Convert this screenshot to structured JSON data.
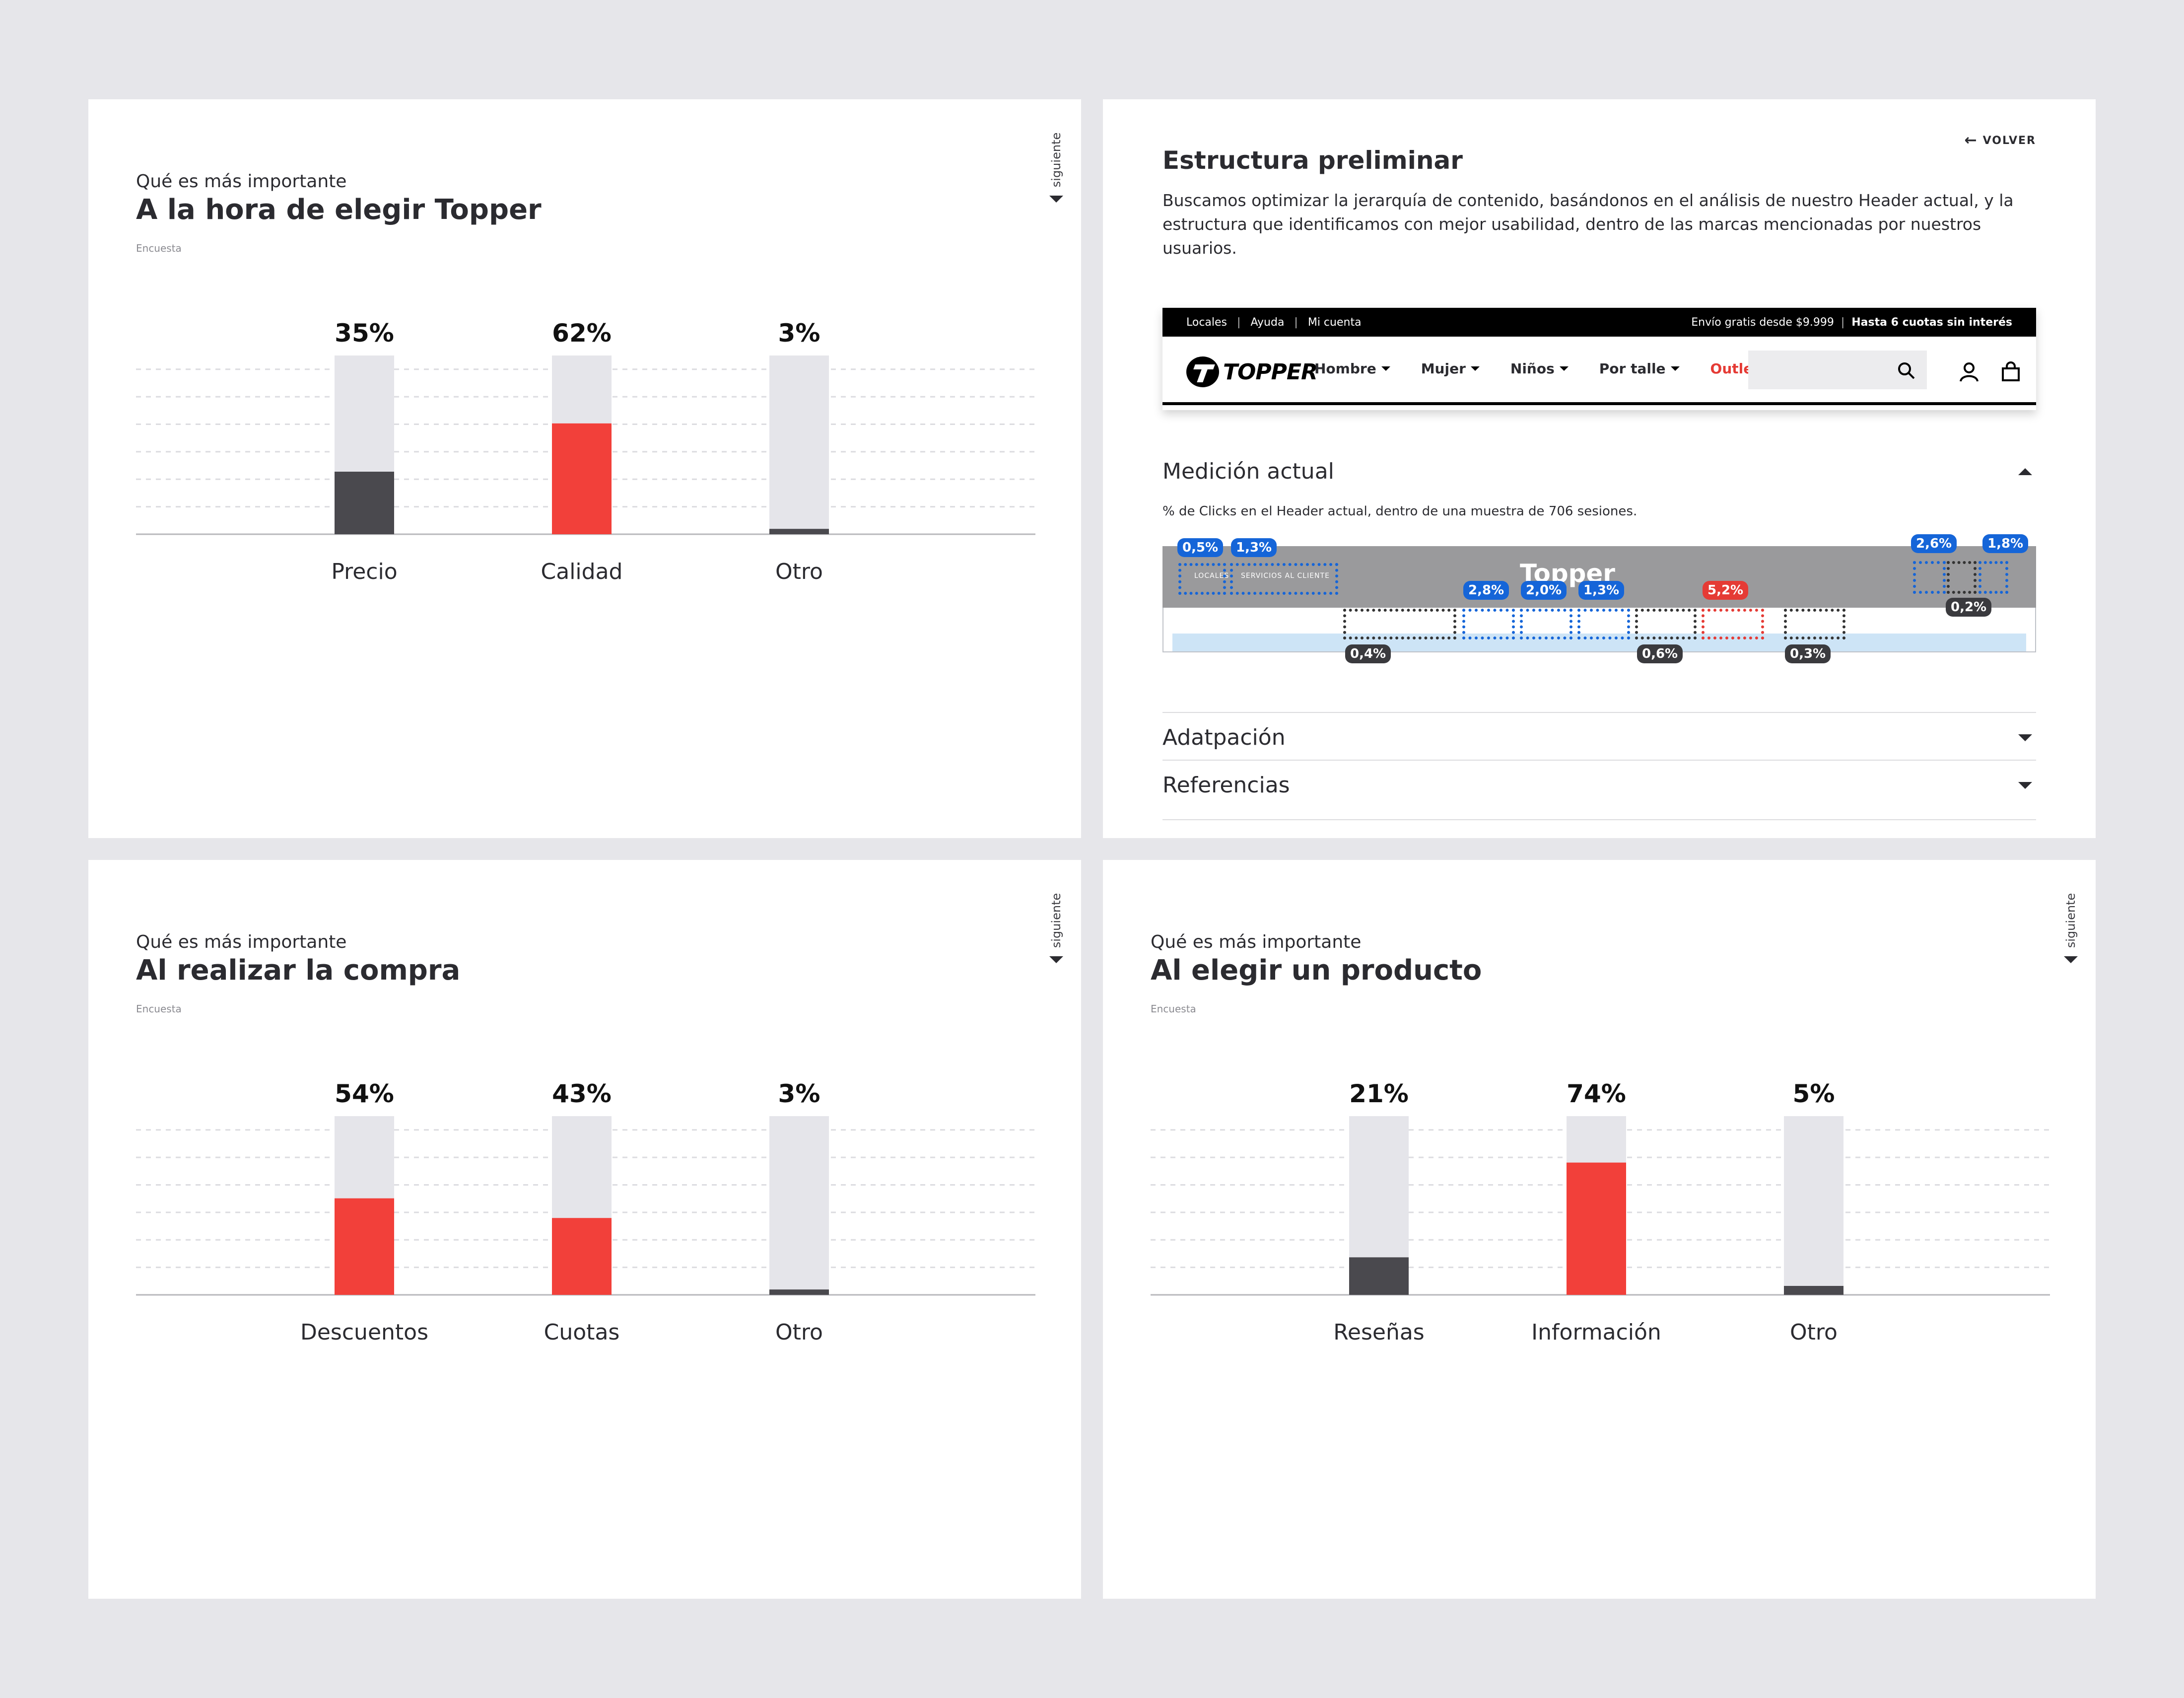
{
  "colors": {
    "accent_red": "#f2403a",
    "dark_bar": "#4a494e",
    "track": "#e5e5ea",
    "tag_blue": "#1565d8",
    "tag_red": "#e53b35",
    "tag_dark": "#3a3a3e"
  },
  "common": {
    "next_label": "siguiente",
    "source": "Encuesta"
  },
  "panels": {
    "p1": {
      "eyebrow": "Qué es más importante",
      "title": "A la hora de elegir Topper",
      "chart_data": {
        "type": "bar",
        "categories": [
          "Precio",
          "Calidad",
          "Otro"
        ],
        "values": [
          35,
          62,
          3
        ],
        "data_labels": [
          "35%",
          "62%",
          "3%"
        ],
        "highlight": [
          "dark",
          "red",
          "dark"
        ],
        "ylim": [
          0,
          100
        ],
        "grid": true
      }
    },
    "p3": {
      "eyebrow": "Qué es más importante",
      "title": "Al realizar la compra",
      "chart_data": {
        "type": "bar",
        "categories": [
          "Descuentos",
          "Cuotas",
          "Otro"
        ],
        "values": [
          54,
          43,
          3
        ],
        "data_labels": [
          "54%",
          "43%",
          "3%"
        ],
        "highlight": [
          "red",
          "red",
          "dark"
        ],
        "ylim": [
          0,
          100
        ],
        "grid": true
      }
    },
    "p4": {
      "eyebrow": "Qué es más importante",
      "title": "Al elegir un producto",
      "chart_data": {
        "type": "bar",
        "categories": [
          "Reseñas",
          "Información",
          "Otro"
        ],
        "values": [
          21,
          74,
          5
        ],
        "data_labels": [
          "21%",
          "74%",
          "5%"
        ],
        "highlight": [
          "dark",
          "red",
          "dark"
        ],
        "ylim": [
          0,
          100
        ],
        "grid": true
      }
    },
    "p2": {
      "title": "Estructura preliminar",
      "back_label": "VOLVER",
      "description": "Buscamos optimizar la jerarquía de contenido, basándonos en el análisis de nuestro Header actual, y la estructura que identificamos con mejor usabilidad, dentro de las marcas mencionadas por nuestros usuarios.",
      "header_mock": {
        "topbar_links": [
          "Locales",
          "Ayuda",
          "Mi cuenta"
        ],
        "shipping": "Envío gratis desde $9.999",
        "installments": "Hasta 6 cuotas sin interés",
        "brand": "TOPPER",
        "nav": [
          "Hombre",
          "Mujer",
          "Niños",
          "Por talle"
        ],
        "outlet": "Outlet"
      },
      "accordion": {
        "medicion": "Medición actual",
        "medicion_note": "% de Clicks en el Header actual, dentro de una muestra de 706 sesiones.",
        "adaptacion": "Adatpación",
        "referencias": "Referencias"
      },
      "heatmap": {
        "wordmark": "Topper",
        "locales": "LOCALES",
        "servicios": "SERVICIOS AL CLIENTE",
        "tags": {
          "locales": "0,5%",
          "servicios": "1,3%",
          "compra_talle": "0,4%",
          "hombre": "2,8%",
          "mujer": "2,0%",
          "ninos": "1,3%",
          "deportes": "0,6%",
          "outlet": "5,2%",
          "extra": "0,3%",
          "search": "2,6%",
          "account": "0,2%",
          "cart": "1,8%"
        }
      }
    }
  }
}
